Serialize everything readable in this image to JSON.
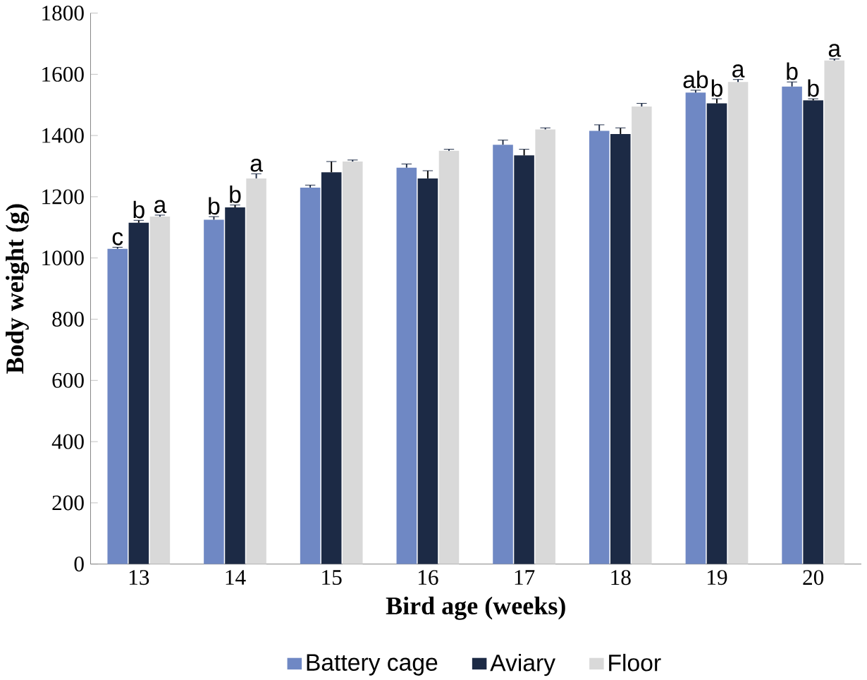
{
  "chart_data": {
    "type": "bar",
    "xlabel": "Bird age (weeks)",
    "ylabel": "Body weight (g)",
    "categories": [
      "13",
      "14",
      "15",
      "16",
      "17",
      "18",
      "19",
      "20"
    ],
    "series": [
      {
        "name": "Battery cage",
        "color": "#6f88c4",
        "values": [
          1030,
          1125,
          1230,
          1295,
          1370,
          1415,
          1540,
          1560
        ],
        "errors": [
          5,
          10,
          8,
          12,
          15,
          20,
          8,
          15
        ],
        "value_labels": [
          "c",
          "b",
          null,
          null,
          null,
          null,
          "ab",
          "b"
        ]
      },
      {
        "name": "Aviary",
        "color": "#1c2a45",
        "values": [
          1115,
          1165,
          1280,
          1260,
          1335,
          1405,
          1505,
          1515
        ],
        "errors": [
          8,
          8,
          35,
          25,
          20,
          20,
          15,
          5
        ],
        "value_labels": [
          "b",
          "b",
          null,
          null,
          null,
          null,
          "b",
          "b"
        ]
      },
      {
        "name": "Floor",
        "color": "#d9d9d9",
        "values": [
          1135,
          1260,
          1315,
          1350,
          1420,
          1495,
          1575,
          1645
        ],
        "errors": [
          5,
          15,
          5,
          5,
          5,
          10,
          8,
          5
        ],
        "value_labels": [
          "a",
          "a",
          null,
          null,
          null,
          null,
          "a",
          "a"
        ]
      }
    ],
    "ylim": [
      0,
      1800
    ],
    "yticks": [
      0,
      200,
      400,
      600,
      800,
      1000,
      1200,
      1400,
      1600,
      1800
    ],
    "grid": false,
    "legend": "bottom"
  }
}
